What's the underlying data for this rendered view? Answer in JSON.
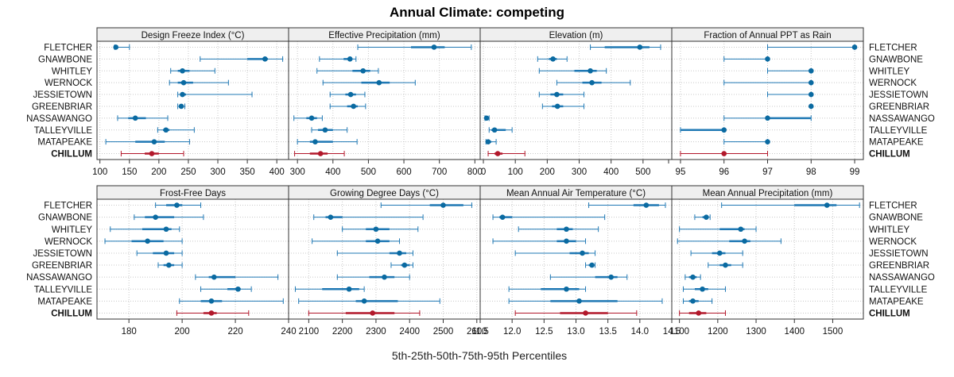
{
  "chart_data": {
    "type": "dot-interval",
    "title": "Annual Climate: competing",
    "xlabel": "5th-25th-50th-75th-95th Percentiles",
    "sites": [
      "FLETCHER",
      "GNAWBONE",
      "WHITLEY",
      "WERNOCK",
      "JESSIETOWN",
      "GREENBRIAR",
      "NASSAWANGO",
      "TALLEYVILLE",
      "MATAPEAKE",
      "CHILLUM"
    ],
    "reference_site": "CHILLUM",
    "colors": {
      "series": "#1f78b4",
      "dot": "#0a6aa1",
      "reference": "#b2182b",
      "strip": "#efefef",
      "grid": "#c8c8c8"
    },
    "panels": [
      {
        "name": "Design Freeze Index (°C)",
        "xlim": [
          95,
          420
        ],
        "ticks": [
          "100",
          "150",
          "200",
          "250",
          "300",
          "350",
          "400"
        ],
        "data": [
          [
            125,
            126,
            127,
            129,
            150
          ],
          [
            270,
            350,
            380,
            385,
            410
          ],
          [
            220,
            232,
            240,
            252,
            295
          ],
          [
            218,
            232,
            242,
            258,
            318
          ],
          [
            232,
            236,
            240,
            246,
            358
          ],
          [
            232,
            235,
            238,
            240,
            244
          ],
          [
            130,
            148,
            160,
            178,
            215
          ],
          [
            198,
            207,
            212,
            218,
            260
          ],
          [
            110,
            160,
            192,
            210,
            252
          ],
          [
            136,
            176,
            188,
            200,
            242
          ]
        ]
      },
      {
        "name": "Effective Precipitation (mm)",
        "xlim": [
          275,
          815
        ],
        "ticks": [
          "300",
          "400",
          "500",
          "600",
          "700",
          "800"
        ],
        "data": [
          [
            470,
            620,
            685,
            715,
            790
          ],
          [
            362,
            430,
            448,
            455,
            465
          ],
          [
            355,
            455,
            485,
            505,
            528
          ],
          [
            372,
            480,
            530,
            560,
            632
          ],
          [
            392,
            435,
            450,
            465,
            490
          ],
          [
            392,
            440,
            458,
            470,
            492
          ],
          [
            290,
            325,
            340,
            355,
            370
          ],
          [
            340,
            358,
            378,
            400,
            440
          ],
          [
            300,
            335,
            350,
            400,
            468
          ],
          [
            292,
            335,
            365,
            385,
            432
          ]
        ]
      },
      {
        "name": "Elevation (m)",
        "xlim": [
          -10,
          590
        ],
        "ticks": [
          "0",
          "100",
          "200",
          "300",
          "400",
          "500",
          ""
        ],
        "data": [
          [
            335,
            380,
            490,
            520,
            555
          ],
          [
            170,
            205,
            218,
            230,
            262
          ],
          [
            175,
            285,
            335,
            355,
            385
          ],
          [
            230,
            310,
            340,
            370,
            460
          ],
          [
            175,
            210,
            230,
            250,
            315
          ],
          [
            185,
            215,
            232,
            250,
            315
          ],
          [
            5,
            8,
            10,
            12,
            18
          ],
          [
            18,
            25,
            35,
            70,
            90
          ],
          [
            8,
            12,
            15,
            25,
            40
          ],
          [
            15,
            35,
            45,
            60,
            130
          ]
        ]
      },
      {
        "name": "Fraction of Annual PPT as Rain",
        "xlim": [
          94.8,
          99.2
        ],
        "ticks": [
          "95",
          "96",
          "97",
          "98",
          "99"
        ],
        "data": [
          [
            97,
            99,
            99,
            99,
            99
          ],
          [
            96,
            97,
            97,
            97,
            97
          ],
          [
            97,
            98,
            98,
            98,
            98
          ],
          [
            96,
            98,
            98,
            98,
            98
          ],
          [
            97,
            98,
            98,
            98,
            98
          ],
          [
            98,
            98,
            98,
            98,
            98
          ],
          [
            96,
            97,
            97,
            98,
            98
          ],
          [
            95,
            95,
            96,
            96,
            96
          ],
          [
            96,
            97,
            97,
            97,
            97
          ],
          [
            95,
            96,
            96,
            96,
            97
          ]
        ]
      },
      {
        "name": "Frost-Free Days",
        "xlim": [
          168,
          240
        ],
        "ticks": [
          "180",
          "200",
          "220",
          "240"
        ],
        "data": [
          [
            190,
            194,
            198,
            200,
            207
          ],
          [
            182,
            186,
            190,
            197,
            208
          ],
          [
            173,
            185,
            194,
            196,
            199
          ],
          [
            171,
            181,
            187,
            193,
            200
          ],
          [
            183,
            189,
            194,
            197,
            200
          ],
          [
            191,
            193,
            195,
            197,
            200
          ],
          [
            205,
            210,
            212,
            220,
            236
          ],
          [
            207,
            217,
            221,
            222,
            226
          ],
          [
            199,
            207,
            211,
            215,
            238
          ],
          [
            198,
            208,
            211,
            213,
            225
          ]
        ]
      },
      {
        "name": "Growing Degree Days (°C)",
        "xlim": [
          2040,
          2610
        ],
        "ticks": [
          "2100",
          "2200",
          "2300",
          "2400",
          "2500",
          "2600"
        ],
        "data": [
          [
            2315,
            2460,
            2500,
            2560,
            2585
          ],
          [
            2115,
            2150,
            2165,
            2200,
            2440
          ],
          [
            2200,
            2270,
            2300,
            2340,
            2425
          ],
          [
            2110,
            2270,
            2305,
            2340,
            2370
          ],
          [
            2185,
            2340,
            2370,
            2390,
            2410
          ],
          [
            2345,
            2375,
            2385,
            2400,
            2410
          ],
          [
            2185,
            2280,
            2325,
            2355,
            2400
          ],
          [
            2060,
            2140,
            2220,
            2250,
            2265
          ],
          [
            2070,
            2240,
            2265,
            2365,
            2490
          ],
          [
            2100,
            2210,
            2290,
            2355,
            2430
          ]
        ]
      },
      {
        "name": "Mean Annual Air Temperature (°C)",
        "xlim": [
          11.5,
          14.5
        ],
        "ticks": [
          "11.5",
          "12.0",
          "12.5",
          "13.0",
          "13.5",
          "14.0",
          "14.5"
        ],
        "data": [
          [
            13.2,
            13.9,
            14.1,
            14.3,
            14.4
          ],
          [
            11.7,
            11.8,
            11.85,
            12.0,
            13.45
          ],
          [
            12.1,
            12.7,
            12.85,
            12.95,
            13.35
          ],
          [
            11.7,
            12.7,
            12.85,
            13.0,
            13.15
          ],
          [
            12.05,
            12.9,
            13.1,
            13.2,
            13.3
          ],
          [
            13.15,
            13.2,
            13.25,
            13.28,
            13.3
          ],
          [
            12.6,
            13.3,
            13.55,
            13.65,
            13.8
          ],
          [
            11.95,
            12.45,
            12.85,
            13.05,
            13.15
          ],
          [
            11.95,
            12.6,
            13.05,
            13.65,
            14.35
          ],
          [
            12.05,
            12.75,
            13.15,
            13.5,
            13.95
          ]
        ]
      },
      {
        "name": "Mean Annual Precipitation (mm)",
        "xlim": [
          1080,
          1580
        ],
        "ticks": [
          "1100",
          "1200",
          "1300",
          "1400",
          "1500"
        ],
        "data": [
          [
            1210,
            1400,
            1485,
            1510,
            1570
          ],
          [
            1140,
            1160,
            1170,
            1175,
            1180
          ],
          [
            1100,
            1205,
            1260,
            1270,
            1300
          ],
          [
            1095,
            1230,
            1270,
            1285,
            1365
          ],
          [
            1130,
            1185,
            1205,
            1220,
            1265
          ],
          [
            1175,
            1205,
            1220,
            1235,
            1265
          ],
          [
            1115,
            1125,
            1135,
            1145,
            1155
          ],
          [
            1110,
            1140,
            1160,
            1175,
            1220
          ],
          [
            1110,
            1125,
            1135,
            1150,
            1185
          ],
          [
            1100,
            1125,
            1150,
            1170,
            1220
          ]
        ]
      }
    ]
  }
}
